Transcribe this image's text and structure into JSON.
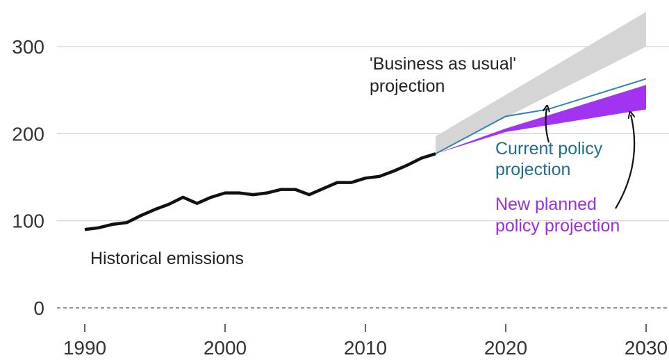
{
  "chart_data": {
    "type": "area",
    "y_ticks": [
      0,
      100,
      200,
      300
    ],
    "x_ticks": [
      1990,
      2000,
      2010,
      2020,
      2030
    ],
    "xlim": [
      1990,
      2030
    ],
    "ylim": [
      0,
      340
    ],
    "grid": "horizontal",
    "zero_line": "dashed",
    "historical": {
      "label": "Historical emissions",
      "color": "#111111",
      "x": [
        1990,
        1991,
        1992,
        1993,
        1994,
        1995,
        1996,
        1997,
        1998,
        1999,
        2000,
        2001,
        2002,
        2003,
        2004,
        2005,
        2006,
        2007,
        2008,
        2009,
        2010,
        2011,
        2012,
        2013,
        2014,
        2015
      ],
      "y": [
        90,
        92,
        96,
        98,
        106,
        113,
        119,
        127,
        120,
        127,
        132,
        132,
        130,
        132,
        136,
        136,
        130,
        137,
        144,
        144,
        149,
        151,
        157,
        164,
        172,
        177
      ]
    },
    "business_as_usual": {
      "label": "'Business as usual'",
      "label_line2": "projection",
      "color": "#d5d5d5",
      "x": [
        2015,
        2030
      ],
      "lower": [
        178,
        300
      ],
      "upper": [
        197,
        340
      ]
    },
    "current_policy": {
      "label": "Current policy",
      "label_line2": "projection",
      "color": "#2e86ab",
      "x": [
        2015,
        2020,
        2023,
        2030
      ],
      "y": [
        177,
        220,
        228,
        263
      ]
    },
    "new_planned_policy": {
      "label": "New planned",
      "label_line2": "policy projection",
      "color": "#a233f0",
      "x": [
        2015,
        2020,
        2030
      ],
      "lower": [
        177,
        202,
        228
      ],
      "upper": [
        177,
        206,
        256
      ]
    }
  }
}
